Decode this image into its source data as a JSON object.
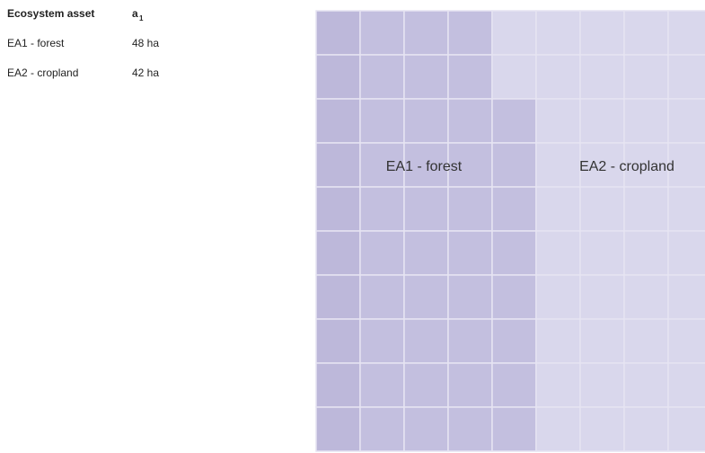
{
  "table": {
    "header": [
      "Ecosystem asset",
      "a"
    ],
    "header_subscript": "1",
    "rows": [
      [
        "EA1 - forest",
        "48 ha"
      ],
      [
        "EA2 - cropland",
        "42 ha"
      ]
    ]
  },
  "grid": {
    "labels": [
      "EA1 - forest",
      "EA2 - cropland"
    ]
  }
}
